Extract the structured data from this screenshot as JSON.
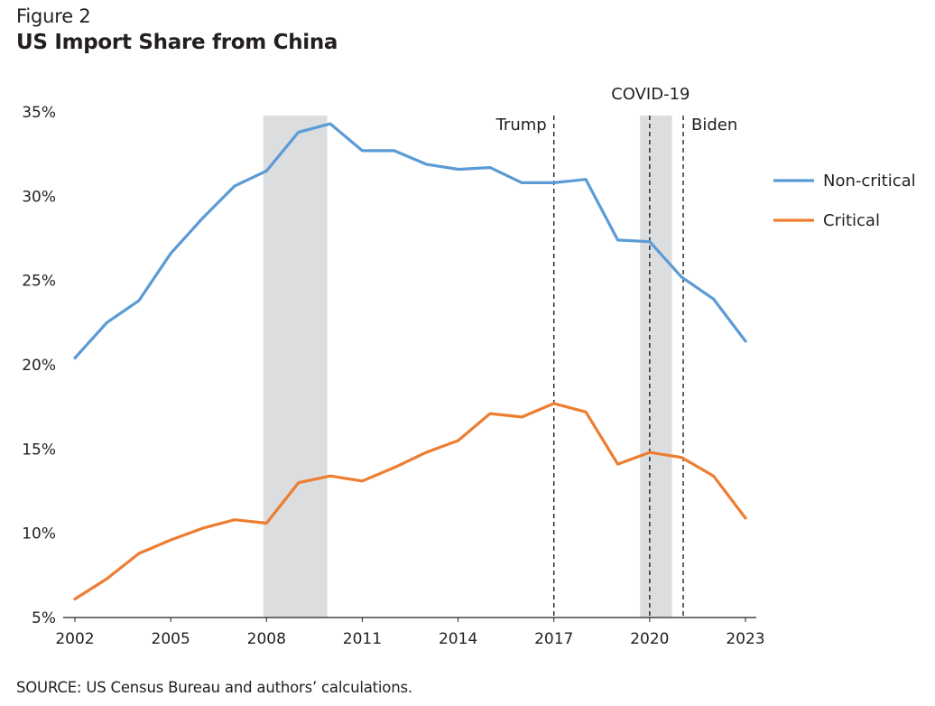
{
  "figure_label": "Figure 2",
  "title": "US Import Share from China",
  "source": "SOURCE: US Census Bureau and authors’ calculations.",
  "chart_data": {
    "type": "line",
    "x": [
      2002,
      2003,
      2004,
      2005,
      2006,
      2007,
      2008,
      2009,
      2010,
      2011,
      2012,
      2013,
      2014,
      2015,
      2016,
      2017,
      2018,
      2019,
      2020,
      2021,
      2022,
      2023
    ],
    "series": [
      {
        "name": "Non-critical",
        "color": "#5b9bd5",
        "values": [
          20.4,
          22.5,
          23.8,
          26.6,
          28.7,
          30.6,
          31.5,
          33.8,
          34.3,
          32.7,
          32.7,
          31.9,
          31.6,
          31.7,
          30.8,
          30.8,
          31.0,
          27.4,
          27.3,
          25.2,
          23.9,
          21.4
        ]
      },
      {
        "name": "Critical",
        "color": "#ed7d31",
        "values": [
          6.1,
          7.3,
          8.8,
          9.6,
          10.3,
          10.8,
          10.6,
          13.0,
          13.4,
          13.1,
          13.9,
          14.8,
          15.5,
          17.1,
          16.9,
          17.7,
          17.2,
          14.1,
          14.8,
          14.5,
          13.4,
          10.9
        ]
      }
    ],
    "xticks": [
      2002,
      2005,
      2008,
      2011,
      2014,
      2017,
      2020,
      2023
    ],
    "xtick_labels": [
      "2002",
      "2005",
      "2008",
      "2011",
      "2014",
      "2017",
      "2020",
      "2023"
    ],
    "yticks": [
      5,
      10,
      15,
      20,
      25,
      30,
      35
    ],
    "ytick_labels": [
      "5%",
      "10%",
      "15%",
      "20%",
      "25%",
      "30%",
      "35%"
    ],
    "xlim": [
      2002,
      2023
    ],
    "ylim": [
      5,
      35
    ],
    "grid": false,
    "legend_position": "right",
    "recession_bands": [
      {
        "start": 2007.9,
        "end": 2009.9,
        "color": "#dcdddf"
      },
      {
        "start": 2019.7,
        "end": 2020.7,
        "color": "#dcdddf"
      }
    ],
    "events": [
      {
        "label": "Trump",
        "x": 2017.0,
        "label_side": "left"
      },
      {
        "label": "COVID-19",
        "x": 2020.0,
        "label_side": "above"
      },
      {
        "label": "Biden",
        "x": 2021.05,
        "label_side": "right"
      }
    ]
  }
}
